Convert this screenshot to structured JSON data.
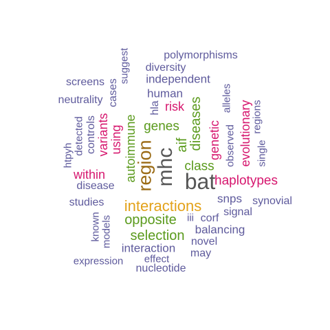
{
  "colors": {
    "slate": "#5e5a9c",
    "magenta": "#d6166e",
    "green": "#5a9a1c",
    "brown": "#9a6a14",
    "gold": "#e3a21a",
    "gray": "#555555"
  },
  "words": [
    {
      "text": "bat",
      "color": "gray"
    },
    {
      "text": "mhc",
      "color": "gray"
    },
    {
      "text": "region",
      "color": "brown"
    },
    {
      "text": "interactions",
      "color": "gold"
    },
    {
      "text": "haplotypes",
      "color": "magenta"
    },
    {
      "text": "selection",
      "color": "green"
    },
    {
      "text": "opposite",
      "color": "green"
    },
    {
      "text": "genes",
      "color": "green"
    },
    {
      "text": "class",
      "color": "green"
    },
    {
      "text": "diseases",
      "color": "green"
    },
    {
      "text": "autoimmune",
      "color": "green"
    },
    {
      "text": "aif",
      "color": "green"
    },
    {
      "text": "evolutionary",
      "color": "magenta"
    },
    {
      "text": "genetic",
      "color": "magenta"
    },
    {
      "text": "variants",
      "color": "magenta"
    },
    {
      "text": "within",
      "color": "magenta"
    },
    {
      "text": "risk",
      "color": "magenta"
    },
    {
      "text": "using",
      "color": "magenta"
    },
    {
      "text": "polymorphisms",
      "color": "slate"
    },
    {
      "text": "diversity",
      "color": "slate"
    },
    {
      "text": "independent",
      "color": "slate"
    },
    {
      "text": "human",
      "color": "slate"
    },
    {
      "text": "screens",
      "color": "slate"
    },
    {
      "text": "neutrality",
      "color": "slate"
    },
    {
      "text": "suggest",
      "color": "slate"
    },
    {
      "text": "cases",
      "color": "slate"
    },
    {
      "text": "hla",
      "color": "slate"
    },
    {
      "text": "alleles",
      "color": "slate"
    },
    {
      "text": "observed",
      "color": "slate"
    },
    {
      "text": "regions",
      "color": "slate"
    },
    {
      "text": "single",
      "color": "slate"
    },
    {
      "text": "controls",
      "color": "slate"
    },
    {
      "text": "detected",
      "color": "slate"
    },
    {
      "text": "htpyh",
      "color": "slate"
    },
    {
      "text": "disease",
      "color": "slate"
    },
    {
      "text": "studies",
      "color": "slate"
    },
    {
      "text": "snps",
      "color": "slate"
    },
    {
      "text": "synovial",
      "color": "slate"
    },
    {
      "text": "signal",
      "color": "slate"
    },
    {
      "text": "iii",
      "color": "slate"
    },
    {
      "text": "corf",
      "color": "slate"
    },
    {
      "text": "balancing",
      "color": "slate"
    },
    {
      "text": "known",
      "color": "slate"
    },
    {
      "text": "models",
      "color": "slate"
    },
    {
      "text": "novel",
      "color": "slate"
    },
    {
      "text": "interaction",
      "color": "slate"
    },
    {
      "text": "may",
      "color": "slate"
    },
    {
      "text": "expression",
      "color": "slate"
    },
    {
      "text": "effect",
      "color": "slate"
    },
    {
      "text": "nucleotide",
      "color": "slate"
    }
  ]
}
